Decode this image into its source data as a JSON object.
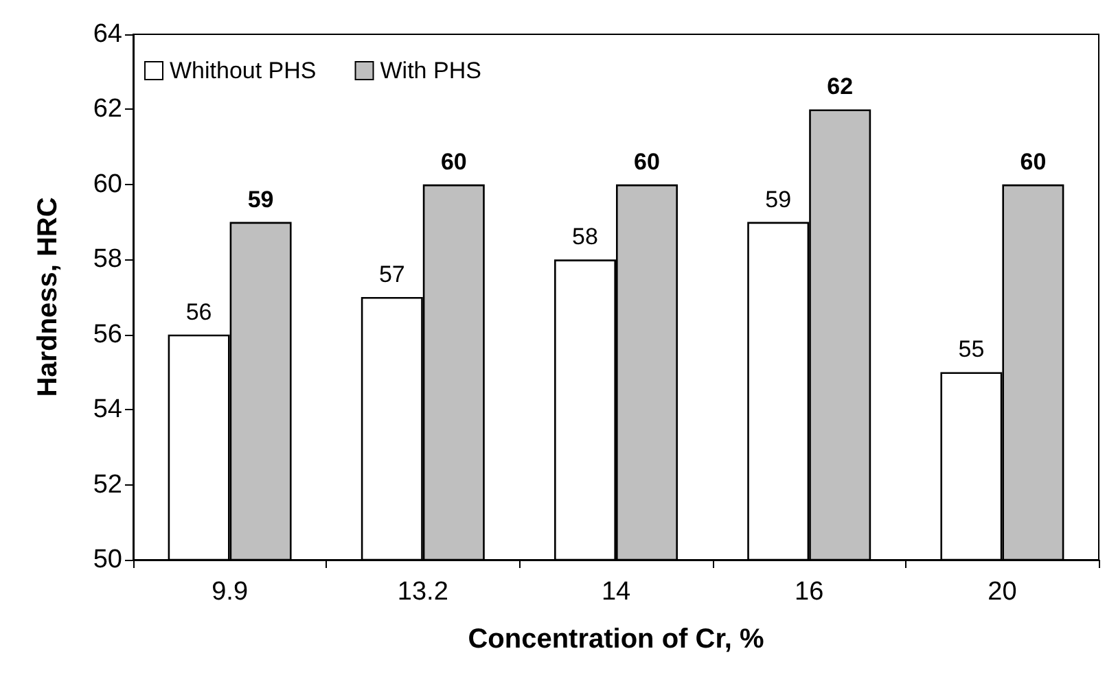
{
  "chart_data": {
    "type": "bar",
    "xlabel": "Concentration of Cr, %",
    "ylabel": "Hardness, HRC",
    "categories": [
      "9.9",
      "13.2",
      "14",
      "16",
      "20"
    ],
    "series": [
      {
        "name": "Whithout PHS",
        "color": "#ffffff",
        "values": [
          56,
          57,
          58,
          59,
          55
        ]
      },
      {
        "name": "With PHS",
        "color": "#bfbfbf",
        "values": [
          59,
          60,
          60,
          62,
          60
        ]
      }
    ],
    "ylim": [
      50,
      64
    ],
    "yticks": [
      50,
      52,
      54,
      56,
      58,
      60,
      62,
      64
    ],
    "grid": false,
    "legend": "top left",
    "data_labels": true
  }
}
